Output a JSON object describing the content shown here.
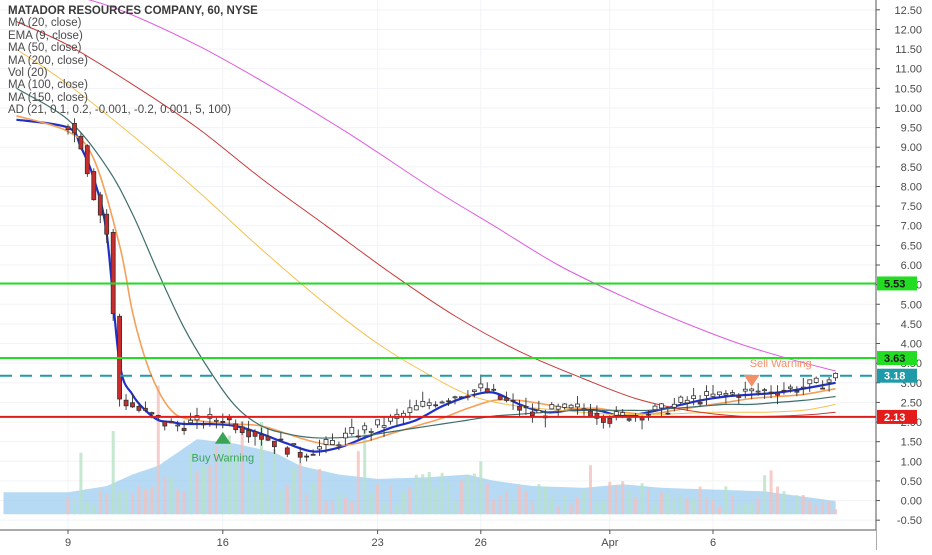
{
  "chart_data": {
    "type": "candlestick",
    "title": "MATADOR RESOURCES COMPANY, 60, NYSE",
    "indicators": [
      "MA (20, close)",
      "EMA (9, close)",
      "MA (50, close)",
      "MA (200, close)",
      "Vol (20)",
      "MA (100, close)",
      "MA (150, close)",
      "AD (21, 0.1, 0.2, -0.001, -0.2, 0.001, 5, 100)"
    ],
    "y_ticks": [
      "12.50",
      "12.00",
      "11.50",
      "11.00",
      "10.50",
      "10.00",
      "9.50",
      "9.00",
      "8.50",
      "8.00",
      "7.50",
      "7.00",
      "6.50",
      "6.00",
      "5.50",
      "5.00",
      "4.50",
      "4.00",
      "3.50",
      "3.00",
      "2.50",
      "2.00",
      "1.50",
      "1.00",
      "0.50",
      "0.00",
      "-0.50"
    ],
    "ylim": [
      -0.75,
      12.75
    ],
    "x_ticks": [
      {
        "label": "9",
        "i": 0
      },
      {
        "label": "16",
        "i": 24
      },
      {
        "label": "23",
        "i": 48
      },
      {
        "label": "26",
        "i": 64
      },
      {
        "label": "Apr",
        "i": 84
      },
      {
        "label": "6",
        "i": 100
      }
    ],
    "n_bars": 120,
    "price_path": [
      [
        0,
        9.6
      ],
      [
        2,
        9.1
      ],
      [
        4,
        7.8
      ],
      [
        6,
        6.8
      ],
      [
        8,
        2.6
      ],
      [
        12,
        2.2
      ],
      [
        16,
        1.9
      ],
      [
        20,
        2.0
      ],
      [
        24,
        2.1
      ],
      [
        28,
        1.8
      ],
      [
        32,
        1.5
      ],
      [
        36,
        1.2
      ],
      [
        40,
        1.4
      ],
      [
        44,
        1.7
      ],
      [
        48,
        1.9
      ],
      [
        52,
        2.2
      ],
      [
        56,
        2.5
      ],
      [
        60,
        2.7
      ],
      [
        64,
        2.85
      ],
      [
        68,
        2.5
      ],
      [
        72,
        2.2
      ],
      [
        76,
        2.3
      ],
      [
        80,
        2.35
      ],
      [
        84,
        2.1
      ],
      [
        88,
        2.2
      ],
      [
        92,
        2.3
      ],
      [
        96,
        2.55
      ],
      [
        100,
        2.65
      ],
      [
        104,
        2.75
      ],
      [
        108,
        2.8
      ],
      [
        112,
        2.85
      ],
      [
        116,
        2.95
      ],
      [
        119,
        3.15
      ]
    ],
    "moving_averages": [
      {
        "name": "EMA (9, close)",
        "color": "#1f2fc8",
        "width": 2.2,
        "points": [
          [
            -8,
            9.7
          ],
          [
            0,
            9.5
          ],
          [
            2,
            9.0
          ],
          [
            4,
            8.2
          ],
          [
            6,
            6.8
          ],
          [
            8,
            3.5
          ],
          [
            10,
            2.7
          ],
          [
            12,
            2.3
          ],
          [
            14,
            2.05
          ],
          [
            16,
            2.0
          ],
          [
            18,
            1.95
          ],
          [
            22,
            1.95
          ],
          [
            26,
            1.9
          ],
          [
            30,
            1.7
          ],
          [
            34,
            1.45
          ],
          [
            38,
            1.25
          ],
          [
            42,
            1.35
          ],
          [
            46,
            1.6
          ],
          [
            50,
            1.85
          ],
          [
            54,
            2.05
          ],
          [
            58,
            2.4
          ],
          [
            62,
            2.65
          ],
          [
            66,
            2.75
          ],
          [
            70,
            2.45
          ],
          [
            74,
            2.25
          ],
          [
            78,
            2.3
          ],
          [
            82,
            2.3
          ],
          [
            86,
            2.15
          ],
          [
            90,
            2.25
          ],
          [
            94,
            2.4
          ],
          [
            98,
            2.55
          ],
          [
            102,
            2.65
          ],
          [
            106,
            2.7
          ],
          [
            110,
            2.75
          ],
          [
            114,
            2.85
          ],
          [
            119,
            3.0
          ]
        ]
      },
      {
        "name": "MA (20, close)",
        "color": "#f5a05a",
        "width": 1.6,
        "points": [
          [
            -8,
            9.8
          ],
          [
            0,
            9.4
          ],
          [
            4,
            8.7
          ],
          [
            8,
            6.5
          ],
          [
            10,
            4.8
          ],
          [
            12,
            3.6
          ],
          [
            14,
            2.8
          ],
          [
            16,
            2.3
          ],
          [
            18,
            2.1
          ],
          [
            22,
            2.0
          ],
          [
            26,
            1.95
          ],
          [
            30,
            1.9
          ],
          [
            34,
            1.7
          ],
          [
            38,
            1.5
          ],
          [
            42,
            1.4
          ],
          [
            46,
            1.5
          ],
          [
            50,
            1.7
          ],
          [
            54,
            1.9
          ],
          [
            58,
            2.1
          ],
          [
            62,
            2.35
          ],
          [
            66,
            2.55
          ],
          [
            70,
            2.55
          ],
          [
            74,
            2.45
          ],
          [
            78,
            2.35
          ],
          [
            82,
            2.35
          ],
          [
            86,
            2.25
          ],
          [
            90,
            2.2
          ],
          [
            94,
            2.3
          ],
          [
            98,
            2.4
          ],
          [
            102,
            2.5
          ],
          [
            106,
            2.6
          ],
          [
            110,
            2.65
          ],
          [
            114,
            2.7
          ],
          [
            119,
            2.85
          ]
        ]
      },
      {
        "name": "MA (50, close)",
        "color": "#3f6e6c",
        "width": 1.2,
        "points": [
          [
            -8,
            10.5
          ],
          [
            0,
            9.7
          ],
          [
            6,
            8.5
          ],
          [
            10,
            7.3
          ],
          [
            14,
            5.8
          ],
          [
            18,
            4.4
          ],
          [
            22,
            3.3
          ],
          [
            26,
            2.4
          ],
          [
            30,
            1.9
          ],
          [
            34,
            1.7
          ],
          [
            38,
            1.6
          ],
          [
            42,
            1.6
          ],
          [
            46,
            1.65
          ],
          [
            50,
            1.75
          ],
          [
            54,
            1.85
          ],
          [
            58,
            1.95
          ],
          [
            62,
            2.05
          ],
          [
            66,
            2.15
          ],
          [
            70,
            2.2
          ],
          [
            74,
            2.25
          ],
          [
            78,
            2.3
          ],
          [
            82,
            2.3
          ],
          [
            86,
            2.3
          ],
          [
            90,
            2.3
          ],
          [
            94,
            2.35
          ],
          [
            98,
            2.4
          ],
          [
            102,
            2.45
          ],
          [
            106,
            2.45
          ],
          [
            110,
            2.5
          ],
          [
            114,
            2.55
          ],
          [
            119,
            2.65
          ]
        ]
      },
      {
        "name": "MA (100, close)",
        "color": "#f5c150",
        "width": 1.0,
        "points": [
          [
            -8,
            11.5
          ],
          [
            0,
            10.6
          ],
          [
            10,
            9.3
          ],
          [
            20,
            7.9
          ],
          [
            30,
            6.4
          ],
          [
            40,
            5.0
          ],
          [
            48,
            4.0
          ],
          [
            56,
            3.2
          ],
          [
            62,
            2.7
          ],
          [
            68,
            2.45
          ],
          [
            76,
            2.3
          ],
          [
            84,
            2.2
          ],
          [
            92,
            2.2
          ],
          [
            100,
            2.25
          ],
          [
            108,
            2.25
          ],
          [
            114,
            2.3
          ],
          [
            119,
            2.45
          ]
        ]
      },
      {
        "name": "MA (150, close)",
        "color": "#c83a3a",
        "width": 1.0,
        "points": [
          [
            -8,
            12.2
          ],
          [
            0,
            11.6
          ],
          [
            10,
            10.6
          ],
          [
            20,
            9.5
          ],
          [
            30,
            8.2
          ],
          [
            40,
            7.0
          ],
          [
            50,
            5.8
          ],
          [
            60,
            4.7
          ],
          [
            70,
            3.8
          ],
          [
            80,
            3.1
          ],
          [
            88,
            2.6
          ],
          [
            96,
            2.3
          ],
          [
            104,
            2.15
          ],
          [
            110,
            2.15
          ],
          [
            116,
            2.2
          ],
          [
            119,
            2.25
          ]
        ]
      },
      {
        "name": "MA (200, close)",
        "color": "#e05be0",
        "width": 1.0,
        "points": [
          [
            0,
            12.9
          ],
          [
            8,
            12.5
          ],
          [
            20,
            11.6
          ],
          [
            32,
            10.5
          ],
          [
            44,
            9.3
          ],
          [
            56,
            8.0
          ],
          [
            66,
            7.0
          ],
          [
            76,
            6.0
          ],
          [
            86,
            5.2
          ],
          [
            96,
            4.5
          ],
          [
            104,
            4.0
          ],
          [
            112,
            3.6
          ],
          [
            119,
            3.3
          ]
        ]
      }
    ],
    "horizontal_levels": [
      {
        "price": 5.53,
        "label": "5.53",
        "color": "#22dd22",
        "style": "solid"
      },
      {
        "price": 3.63,
        "label": "3.63",
        "color": "#22dd22",
        "style": "solid"
      },
      {
        "price": 3.18,
        "label": "3.18",
        "color": "#1e9aa8",
        "style": "dashed"
      },
      {
        "price": 2.13,
        "label": "2.13",
        "color": "#e21b1b",
        "style": "solid"
      }
    ],
    "annotations": [
      {
        "text": "Buy Warning",
        "at_i": 24,
        "price": 1.6,
        "color": "#3aa356",
        "marker": "up-triangle"
      },
      {
        "text": "Sell Warning",
        "at_i": 106,
        "price": 3.05,
        "color": "#f2906a",
        "marker": "down-triangle"
      }
    ],
    "volume_color": "#9dcdf0",
    "volume_profile": [
      [
        0,
        0.25
      ],
      [
        6,
        0.32
      ],
      [
        10,
        0.45
      ],
      [
        14,
        0.55
      ],
      [
        18,
        0.75
      ],
      [
        20,
        0.85
      ],
      [
        26,
        0.8
      ],
      [
        32,
        0.7
      ],
      [
        36,
        0.55
      ],
      [
        42,
        0.45
      ],
      [
        48,
        0.4
      ],
      [
        56,
        0.42
      ],
      [
        62,
        0.45
      ],
      [
        66,
        0.38
      ],
      [
        72,
        0.32
      ],
      [
        80,
        0.3
      ],
      [
        86,
        0.34
      ],
      [
        92,
        0.3
      ],
      [
        100,
        0.28
      ],
      [
        108,
        0.26
      ],
      [
        114,
        0.2
      ],
      [
        119,
        0.15
      ]
    ],
    "grid": true,
    "legend_position": "top-left"
  }
}
